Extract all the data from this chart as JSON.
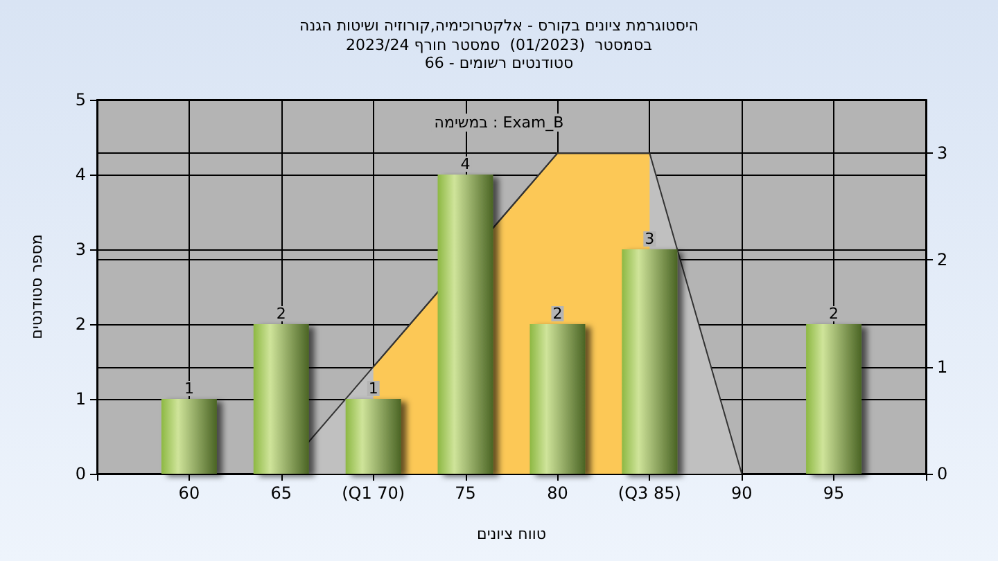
{
  "chart_data": {
    "type": "bar",
    "title": "היסטוגרמת ציונים בקורס - אלקטרוכימיה,קורוזיה ושיטות הגנה",
    "subtitle": "בסמסטר  (01/2023)  סמסטר חורף 2023/24\nסטודנטים רשומים - 66",
    "xlabel": "טווח ציונים",
    "ylabel": "מספר סטודנטים",
    "annotations": [
      "במשימה : Exam_B"
    ],
    "categories": [
      null,
      "60",
      "65",
      "(Q1 70)",
      "75",
      "80",
      "(Q3 85)",
      "90",
      "95",
      null
    ],
    "series": [
      {
        "type": "area",
        "axis": "y2",
        "color": "#c0c0c0",
        "values": [
          null,
          null,
          0,
          1,
          null,
          3,
          3,
          0,
          null,
          null
        ]
      },
      {
        "type": "area",
        "axis": "y2",
        "color": "#fcc856",
        "values": [
          null,
          null,
          null,
          1,
          null,
          3,
          3,
          null,
          null,
          null
        ]
      },
      {
        "color": "#8db843",
        "values": [
          null,
          1,
          2,
          1,
          4,
          2,
          3,
          null,
          2,
          null
        ],
        "value_labels": [
          null,
          "1",
          "2",
          "1",
          "4",
          "2",
          "3",
          null,
          "2",
          null
        ]
      }
    ],
    "ylim": [
      0,
      5
    ],
    "yticks": [
      0,
      1,
      2,
      3,
      4,
      5
    ],
    "y2lim": [
      0,
      3.5
    ],
    "y2ticks": [
      0,
      1,
      2,
      3
    ],
    "grid": true
  }
}
